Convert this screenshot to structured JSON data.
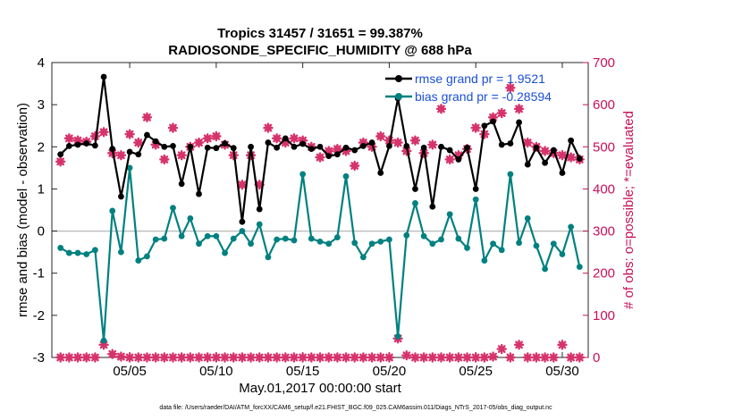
{
  "chart_data": {
    "type": "line",
    "title": "Tropics 31457 / 31651 = 99.387%",
    "subtitle": "RADIOSONDE_SPECIFIC_HUMIDITY @ 688 hPa",
    "xlabel": "May.01,2017 00:00:00 start",
    "ylabel": "rmse and bias (model - observation)",
    "ylabel_right": "# of obs: o=possible; *=evaluated",
    "xlim": [
      0.5,
      31.5
    ],
    "ylim": [
      -3,
      4
    ],
    "ylim_right": [
      0,
      700
    ],
    "xticks": [
      5,
      10,
      15,
      20,
      25,
      30
    ],
    "xtick_labels": [
      "05/05",
      "05/10",
      "05/15",
      "05/20",
      "05/25",
      "05/30"
    ],
    "yticks": [
      -3,
      -2,
      -1,
      0,
      1,
      2,
      3,
      4
    ],
    "yticks_right": [
      0,
      100,
      200,
      300,
      400,
      500,
      600,
      700
    ],
    "zero_line": 0,
    "grid": false,
    "legend": {
      "placement": "top-right",
      "entries": [
        "rmse grand pr = 1.9521",
        "bias grand pr = -0.28594"
      ]
    },
    "footer": "data file: /Users/raeder/DAI/ATM_forcXX/CAM6_setup/f.e21.FHIST_BGC.f09_025.CAM6assim.011/Diags_NTrS_2017-05/obs_diag_output.nc",
    "colors": {
      "rmse": "#000000",
      "bias": "#008080",
      "obs": "#d6336c",
      "right_axis": "#c8105a",
      "legend_text": "#1a4fd6",
      "zero": "#c0c0c0"
    },
    "series": [
      {
        "name": "rmse",
        "x": [
          1,
          1.5,
          2,
          2.5,
          3,
          3.5,
          4,
          4.5,
          5,
          5.5,
          6,
          6.5,
          7,
          7.5,
          8,
          8.5,
          9,
          9.5,
          10,
          10.5,
          11,
          11.5,
          12,
          12.5,
          13,
          13.5,
          14,
          14.5,
          15,
          15.5,
          16,
          16.5,
          17,
          17.5,
          18,
          18.5,
          19,
          19.5,
          20,
          20.5,
          21,
          21.5,
          22,
          22.5,
          23,
          23.5,
          24,
          24.5,
          25,
          25.5,
          26,
          26.5,
          27,
          27.5,
          28,
          28.5,
          29,
          29.5,
          30,
          30.5,
          31
        ],
        "values": [
          1.82,
          2.02,
          2.05,
          2.08,
          2.03,
          3.66,
          1.95,
          0.82,
          1.88,
          1.82,
          2.28,
          2.13,
          2.0,
          2.02,
          1.12,
          2.0,
          0.88,
          1.98,
          1.97,
          2.08,
          1.97,
          0.22,
          2.0,
          0.52,
          2.1,
          1.98,
          2.2,
          2.0,
          2.07,
          1.95,
          2.0,
          1.78,
          1.82,
          1.98,
          1.92,
          2.02,
          2.1,
          1.38,
          2.02,
          3.15,
          2.02,
          1.0,
          1.98,
          0.58,
          2.0,
          1.92,
          1.7,
          1.98,
          1.0,
          2.5,
          2.6,
          2.05,
          2.08,
          2.58,
          1.58,
          1.98,
          1.62,
          1.92,
          1.38,
          2.15,
          1.72
        ]
      },
      {
        "name": "bias",
        "x": [
          1,
          1.5,
          2,
          2.5,
          3,
          3.5,
          4,
          4.5,
          5,
          5.5,
          6,
          6.5,
          7,
          7.5,
          8,
          8.5,
          9,
          9.5,
          10,
          10.5,
          11,
          11.5,
          12,
          12.5,
          13,
          13.5,
          14,
          14.5,
          15,
          15.5,
          16,
          16.5,
          17,
          17.5,
          18,
          18.5,
          19,
          19.5,
          20,
          20.5,
          21,
          21.5,
          22,
          22.5,
          23,
          23.5,
          24,
          24.5,
          25,
          25.5,
          26,
          26.5,
          27,
          27.5,
          28,
          28.5,
          29,
          29.5,
          30,
          30.5,
          31
        ],
        "values": [
          -0.4,
          -0.52,
          -0.52,
          -0.55,
          -0.45,
          -2.6,
          0.48,
          -0.5,
          1.5,
          -0.7,
          -0.6,
          -0.2,
          -0.18,
          0.55,
          -0.12,
          0.3,
          -0.3,
          -0.12,
          -0.12,
          -0.52,
          -0.18,
          0.0,
          -0.3,
          0.16,
          -0.62,
          -0.2,
          -0.18,
          -0.22,
          1.35,
          -0.18,
          -0.25,
          -0.3,
          -0.15,
          1.3,
          -0.28,
          -0.62,
          -0.3,
          -0.25,
          -0.2,
          -2.5,
          -0.1,
          0.66,
          -0.12,
          -0.3,
          -0.2,
          0.4,
          -0.18,
          -0.4,
          0.75,
          -0.7,
          -0.3,
          -0.45,
          1.35,
          -0.28,
          0.3,
          -0.35,
          -0.9,
          -0.3,
          -0.55,
          0.1,
          -0.85
        ]
      },
      {
        "name": "obs evaluated (right axis)",
        "x": [
          1,
          1.5,
          2,
          2.5,
          3,
          3.5,
          4,
          4.5,
          5,
          5.5,
          6,
          6.5,
          7,
          7.5,
          8,
          8.5,
          9,
          9.5,
          10,
          10.5,
          11,
          11.5,
          12,
          12.5,
          13,
          13.5,
          14,
          14.5,
          15,
          15.5,
          16,
          16.5,
          17,
          17.5,
          18,
          18.5,
          19,
          19.5,
          20,
          20.5,
          21,
          21.5,
          22,
          22.5,
          23,
          23.5,
          24,
          24.5,
          25,
          25.5,
          26,
          26.5,
          27,
          27.5,
          28,
          28.5,
          29,
          29.5,
          30,
          30.5,
          31
        ],
        "values": [
          465,
          520,
          515,
          512,
          525,
          535,
          485,
          480,
          530,
          510,
          570,
          505,
          470,
          545,
          480,
          500,
          510,
          520,
          525,
          505,
          480,
          410,
          480,
          410,
          545,
          520,
          510,
          520,
          515,
          500,
          475,
          490,
          495,
          490,
          455,
          510,
          500,
          525,
          515,
          510,
          490,
          515,
          485,
          505,
          590,
          470,
          480,
          495,
          545,
          530,
          570,
          580,
          640,
          590,
          510,
          500,
          490,
          485,
          480,
          475,
          470
        ]
      },
      {
        "name": "obs possible (right axis)",
        "x": [
          1,
          1.5,
          2,
          2.5,
          3,
          3.5,
          4,
          4.5,
          5,
          5.5,
          6,
          6.5,
          7,
          7.5,
          8,
          8.5,
          9,
          9.5,
          10,
          10.5,
          11,
          11.5,
          12,
          12.5,
          13,
          13.5,
          14,
          14.5,
          15,
          15.5,
          16,
          16.5,
          17,
          17.5,
          18,
          18.5,
          19,
          19.5,
          20,
          20.5,
          21,
          21.5,
          22,
          22.5,
          23,
          23.5,
          24,
          24.5,
          25,
          25.5,
          26,
          26.5,
          27,
          27.5,
          28,
          28.5,
          29,
          29.5,
          30,
          30.5,
          31
        ],
        "values": [
          465,
          520,
          515,
          512,
          525,
          535,
          485,
          480,
          530,
          510,
          570,
          505,
          470,
          545,
          480,
          500,
          510,
          520,
          525,
          505,
          480,
          410,
          480,
          410,
          545,
          520,
          510,
          520,
          515,
          500,
          475,
          490,
          495,
          490,
          455,
          510,
          500,
          525,
          515,
          510,
          490,
          515,
          485,
          505,
          590,
          470,
          480,
          495,
          545,
          530,
          570,
          580,
          640,
          590,
          510,
          500,
          490,
          485,
          480,
          475,
          470
        ]
      },
      {
        "name": "obs rejected (right axis)",
        "x": [
          1,
          1.5,
          2,
          2.5,
          3,
          3.5,
          4,
          4.5,
          5,
          5.5,
          6,
          6.5,
          7,
          7.5,
          8,
          8.5,
          9,
          9.5,
          10,
          10.5,
          11,
          11.5,
          12,
          12.5,
          13,
          13.5,
          14,
          14.5,
          15,
          15.5,
          16,
          16.5,
          17,
          17.5,
          18,
          18.5,
          19,
          19.5,
          20,
          20.5,
          21,
          21.5,
          22,
          22.5,
          23,
          23.5,
          24,
          24.5,
          25,
          25.5,
          26,
          26.5,
          27,
          27.5,
          28,
          28.5,
          29,
          29.5,
          30,
          30.5,
          31
        ],
        "values": [
          0,
          0,
          0,
          0,
          0,
          30,
          8,
          2,
          0,
          0,
          0,
          0,
          0,
          0,
          0,
          0,
          0,
          0,
          0,
          0,
          0,
          0,
          0,
          0,
          0,
          0,
          0,
          0,
          0,
          0,
          0,
          0,
          0,
          0,
          0,
          0,
          0,
          0,
          0,
          45,
          5,
          0,
          0,
          0,
          0,
          0,
          0,
          0,
          0,
          0,
          2,
          20,
          0,
          30,
          0,
          0,
          0,
          0,
          30,
          0,
          0
        ]
      }
    ]
  }
}
